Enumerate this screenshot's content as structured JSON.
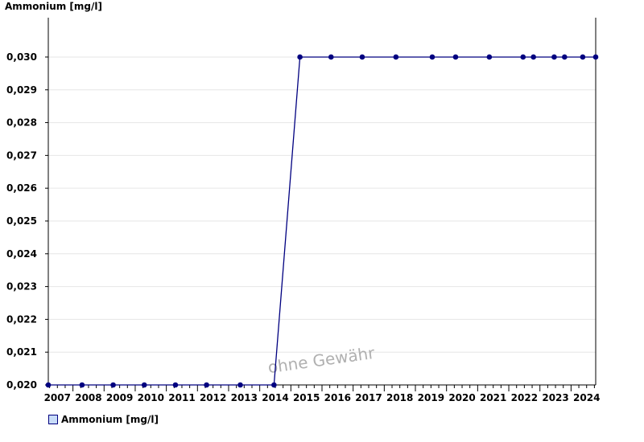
{
  "chart_data": {
    "type": "line",
    "title": "Ammonium [mg/l]",
    "xlabel": "",
    "ylabel": "",
    "watermark": "ohne Gewähr",
    "series": [
      {
        "name": "Ammonium [mg/l]",
        "color": "#000080",
        "points": [
          [
            "2007-03",
            0.02
          ],
          [
            "2008-04",
            0.02
          ],
          [
            "2009-04",
            0.02
          ],
          [
            "2010-04",
            0.02
          ],
          [
            "2011-04",
            0.02
          ],
          [
            "2012-04",
            0.02
          ],
          [
            "2013-05",
            0.02
          ],
          [
            "2014-06",
            0.02
          ],
          [
            "2015-04",
            0.03
          ],
          [
            "2016-04",
            0.03
          ],
          [
            "2017-04",
            0.03
          ],
          [
            "2018-05",
            0.03
          ],
          [
            "2019-07",
            0.03
          ],
          [
            "2020-04",
            0.03
          ],
          [
            "2021-05",
            0.03
          ],
          [
            "2022-06",
            0.03
          ],
          [
            "2022-10",
            0.03
          ],
          [
            "2023-06",
            0.03
          ],
          [
            "2023-10",
            0.03
          ],
          [
            "2024-05",
            0.03
          ],
          [
            "2024-10",
            0.03
          ]
        ]
      }
    ],
    "xlim": [
      "2007-03",
      "2024-10"
    ],
    "ylim": [
      0.02,
      0.0312
    ],
    "x_tick_labels": [
      "2007",
      "2008",
      "2009",
      "2010",
      "2011",
      "2012",
      "2013",
      "2014",
      "2015",
      "2016",
      "2017",
      "2018",
      "2019",
      "2020",
      "2021",
      "2022",
      "2023",
      "2024"
    ],
    "y_ticks": [
      0.02,
      0.021,
      0.022,
      0.023,
      0.024,
      0.025,
      0.026,
      0.027,
      0.028,
      0.029,
      0.03
    ],
    "y_tick_labels": [
      "0,020",
      "0,021",
      "0,022",
      "0,023",
      "0,024",
      "0,025",
      "0,026",
      "0,027",
      "0,028",
      "0,029",
      "0,030"
    ],
    "grid": true,
    "legend_position": "bottom-left"
  }
}
